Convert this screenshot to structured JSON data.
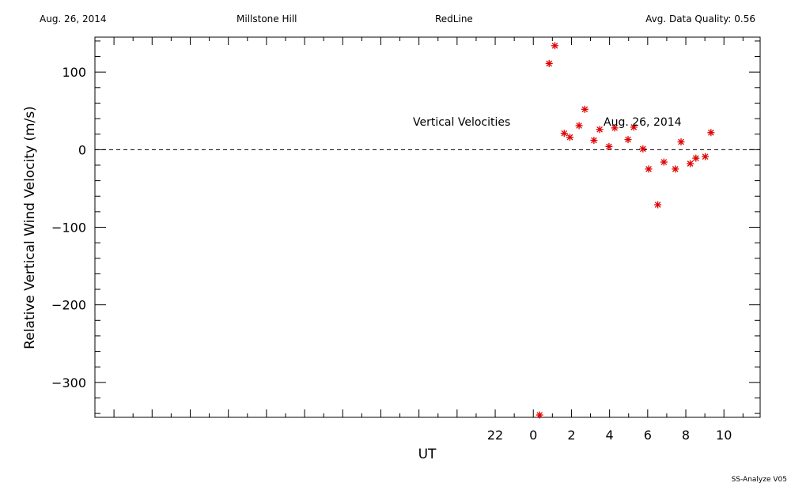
{
  "header": {
    "date": "Aug. 26, 2014",
    "site": "Millstone Hill",
    "instrument": "RedLine",
    "quality": "Avg. Data Quality: 0.56"
  },
  "footer": {
    "version": "SS-Analyze V05"
  },
  "colors": {
    "marker": "#e00000",
    "axis": "#000000",
    "background": "#ffffff"
  },
  "chart_data": {
    "type": "scatter",
    "xlabel": "UT",
    "ylabel": "Relative Vertical Wind Velocity (m/s)",
    "xlim": [
      -23,
      11.9
    ],
    "ylim": [
      -345,
      145
    ],
    "x_ticks": [
      22,
      0,
      2,
      4,
      6,
      8,
      10
    ],
    "x_tick_labels": [
      "22",
      "0",
      "2",
      "4",
      "6",
      "8",
      "10"
    ],
    "y_ticks": [
      100,
      0,
      -100,
      -200,
      -300
    ],
    "y_tick_labels": [
      "100",
      "0",
      "−100",
      "−200",
      "−300"
    ],
    "zero_line": "dashed",
    "annotations": [
      "Vertical Velocities",
      "Aug. 26, 2014"
    ],
    "series": [
      {
        "marker": "asterisk",
        "color": "#e00000",
        "points": [
          {
            "x": 0.33,
            "y": -342
          },
          {
            "x": 0.83,
            "y": 111
          },
          {
            "x": 1.13,
            "y": 134
          },
          {
            "x": 1.62,
            "y": 21
          },
          {
            "x": 1.92,
            "y": 16
          },
          {
            "x": 2.4,
            "y": 31
          },
          {
            "x": 2.7,
            "y": 52
          },
          {
            "x": 3.18,
            "y": 12
          },
          {
            "x": 3.48,
            "y": 26
          },
          {
            "x": 3.97,
            "y": 4
          },
          {
            "x": 4.27,
            "y": 28
          },
          {
            "x": 4.97,
            "y": 13
          },
          {
            "x": 5.27,
            "y": 29
          },
          {
            "x": 5.75,
            "y": 1
          },
          {
            "x": 6.05,
            "y": -25
          },
          {
            "x": 6.53,
            "y": -71
          },
          {
            "x": 6.85,
            "y": -16
          },
          {
            "x": 7.45,
            "y": -25
          },
          {
            "x": 7.75,
            "y": 10
          },
          {
            "x": 8.23,
            "y": -18
          },
          {
            "x": 8.53,
            "y": -11
          },
          {
            "x": 9.02,
            "y": -9
          },
          {
            "x": 9.32,
            "y": 22
          }
        ]
      }
    ]
  }
}
